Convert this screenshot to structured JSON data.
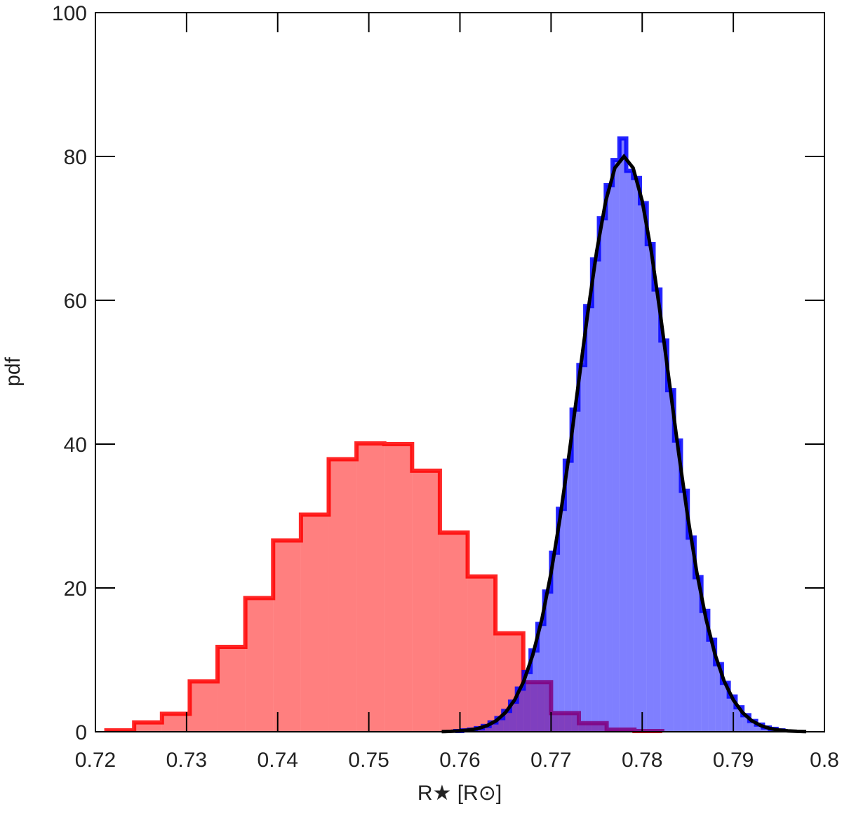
{
  "chart_data": {
    "type": "histogram",
    "xlabel": "R★  [R⊙]",
    "ylabel": "pdf",
    "xlim": [
      0.72,
      0.8
    ],
    "ylim": [
      0,
      100
    ],
    "xticks": [
      0.72,
      0.73,
      0.74,
      0.75,
      0.76,
      0.77,
      0.78,
      0.79,
      0.8
    ],
    "yticks": [
      0,
      20,
      40,
      60,
      80,
      100
    ],
    "series": [
      {
        "color": "#ff0000",
        "bins": [
          0.7212,
          0.72425,
          0.7273,
          0.73035,
          0.7334,
          0.73645,
          0.7395,
          0.74255,
          0.7456,
          0.74865,
          0.7517,
          0.75475,
          0.7578,
          0.76085,
          0.7639,
          0.76695,
          0.77,
          0.77305,
          0.7761,
          0.77915,
          0.7822
        ],
        "values": [
          0.2,
          1.3,
          2.5,
          7.0,
          11.8,
          18.6,
          26.6,
          30.2,
          37.9,
          40.1,
          40.0,
          36.3,
          27.7,
          21.6,
          13.7,
          6.9,
          2.6,
          1.2,
          0.3,
          0.1
        ]
      },
      {
        "color": "#0000ff",
        "bins": [
          0.7595,
          0.76025,
          0.761,
          0.76175,
          0.7625,
          0.76325,
          0.764,
          0.76475,
          0.7655,
          0.76625,
          0.767,
          0.76775,
          0.7685,
          0.76925,
          0.77,
          0.77075,
          0.7715,
          0.77225,
          0.773,
          0.77375,
          0.7745,
          0.77525,
          0.776,
          0.77675,
          0.7775,
          0.77825,
          0.779,
          0.77975,
          0.7805,
          0.78125,
          0.782,
          0.78275,
          0.7835,
          0.78425,
          0.785,
          0.78575,
          0.7865,
          0.78725,
          0.788,
          0.78875,
          0.7895,
          0.79025,
          0.791,
          0.79175,
          0.7925,
          0.79325,
          0.794,
          0.79475,
          0.7955
        ],
        "values": [
          0.1,
          0.2,
          0.3,
          0.5,
          0.8,
          1.3,
          1.9,
          2.9,
          4.2,
          6.0,
          8.3,
          11.3,
          15.0,
          19.5,
          24.9,
          31.0,
          37.7,
          44.8,
          51.0,
          59.2,
          65.7,
          71.4,
          76.0,
          79.5,
          82.5,
          78.0,
          77.0,
          73.5,
          67.8,
          61.5,
          54.4,
          47.5,
          40.5,
          33.5,
          27.0,
          21.5,
          16.8,
          12.8,
          9.4,
          6.8,
          4.9,
          3.4,
          2.3,
          1.5,
          1.0,
          0.6,
          0.4,
          0.2
        ]
      }
    ],
    "curve": {
      "color": "#000000",
      "x": [
        0.758,
        0.759,
        0.76,
        0.761,
        0.762,
        0.763,
        0.764,
        0.765,
        0.766,
        0.767,
        0.768,
        0.769,
        0.77,
        0.771,
        0.772,
        0.773,
        0.774,
        0.775,
        0.776,
        0.777,
        0.778,
        0.779,
        0.78,
        0.781,
        0.782,
        0.783,
        0.784,
        0.785,
        0.786,
        0.787,
        0.788,
        0.789,
        0.79,
        0.791,
        0.792,
        0.793,
        0.794,
        0.795,
        0.796,
        0.797,
        0.798
      ],
      "values": [
        0.026,
        0.056,
        0.118,
        0.24,
        0.46,
        0.87,
        1.56,
        2.68,
        4.42,
        7.02,
        10.72,
        15.7,
        22.1,
        29.87,
        38.79,
        48.39,
        57.99,
        66.76,
        73.81,
        78.41,
        80,
        78.41,
        73.81,
        66.76,
        57.99,
        48.39,
        38.79,
        29.87,
        22.1,
        15.7,
        10.72,
        7.02,
        4.42,
        2.68,
        1.56,
        0.87,
        0.46,
        0.24,
        0.118,
        0.056,
        0.026
      ]
    }
  }
}
